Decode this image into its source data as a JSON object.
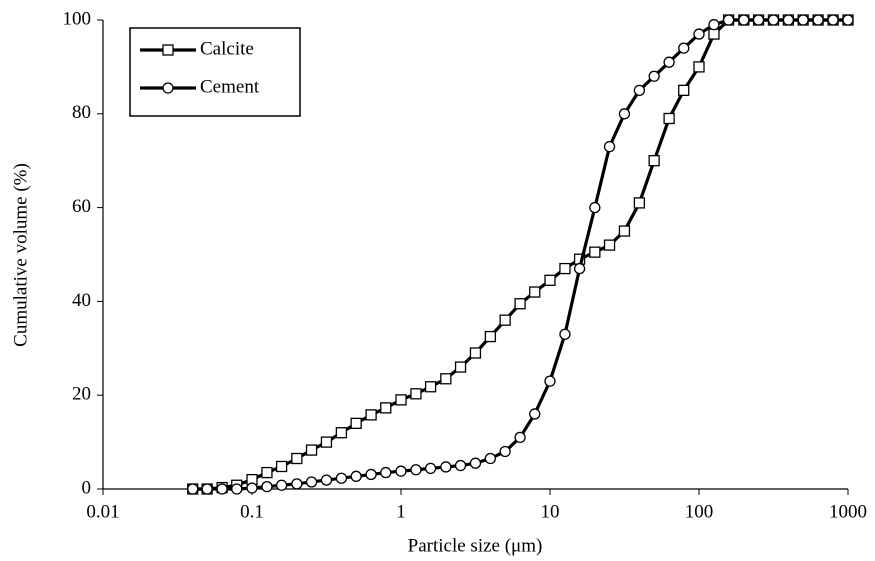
{
  "chart_data": {
    "type": "line",
    "x_label": "Particle size (μm)",
    "y_label": "Cumulative volume (%)",
    "x": [
      0.04,
      0.05,
      0.063,
      0.079,
      0.1,
      0.126,
      0.158,
      0.2,
      0.251,
      0.316,
      0.398,
      0.5,
      0.63,
      0.79,
      1,
      1.26,
      1.58,
      2,
      2.51,
      3.16,
      3.98,
      5,
      6.3,
      7.9,
      10,
      12.6,
      15.8,
      20,
      25.1,
      31.6,
      39.8,
      50,
      63,
      79,
      100,
      126,
      158,
      200,
      251,
      316,
      398,
      500,
      630,
      794,
      1000
    ],
    "series": [
      {
        "name": "Calcite",
        "color": "#000000",
        "marker": "square",
        "values": [
          0,
          0,
          0.3,
          0.8,
          2,
          3.5,
          4.8,
          6.5,
          8.3,
          10,
          12,
          14,
          15.8,
          17.3,
          19,
          20.3,
          21.8,
          23.5,
          26,
          29,
          32.5,
          36,
          39.5,
          42,
          44.5,
          47,
          49,
          50.5,
          52,
          55,
          61,
          70,
          79,
          85,
          90,
          97,
          100,
          100,
          100,
          100,
          100,
          100,
          100,
          100,
          100
        ]
      },
      {
        "name": "Cement",
        "color": "#000000",
        "marker": "circle",
        "values": [
          0,
          0,
          0,
          0,
          0.2,
          0.5,
          0.8,
          1.1,
          1.5,
          1.9,
          2.3,
          2.7,
          3.1,
          3.5,
          3.8,
          4.1,
          4.4,
          4.7,
          5,
          5.5,
          6.5,
          8,
          11,
          16,
          23,
          33,
          47,
          60,
          73,
          80,
          85,
          88,
          91,
          94,
          97,
          99,
          100,
          100,
          100,
          100,
          100,
          100,
          100,
          100,
          100
        ]
      }
    ],
    "x_log": true,
    "xlim": [
      0.01,
      1000
    ],
    "xticks": [
      0.01,
      0.1,
      1,
      10,
      100,
      1000
    ],
    "ylim": [
      0,
      100
    ],
    "yticks": [
      0,
      20,
      40,
      60,
      80,
      100
    ],
    "grid": false,
    "legend": "upper left"
  }
}
